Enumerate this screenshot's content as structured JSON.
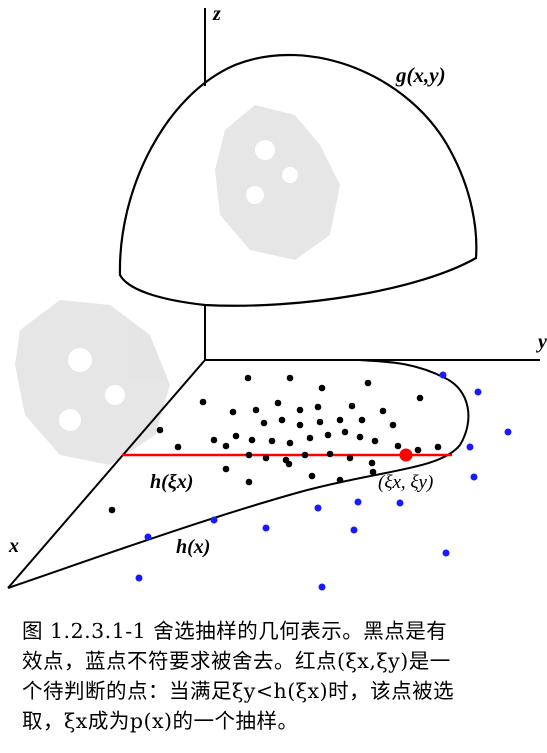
{
  "figure": {
    "axis_labels": {
      "z": "z",
      "y": "y",
      "x": "x"
    },
    "curve_labels": {
      "g": "g(x,y)",
      "h": "h(x)",
      "h_at_xi": "h(ξx)",
      "point": "(ξx, ξy)"
    },
    "colors": {
      "accepted_point": "#000000",
      "rejected_point": "#1a1aff",
      "candidate_point": "#ff0000",
      "reference_line": "#ff0000",
      "watermark": "#e0e0e0"
    },
    "watermark_icon": "watermark-glyph"
  },
  "caption": {
    "line1": "图 1.2.3.1-1 舍选抽样的几何表示。黑点是有",
    "line2": "效点，蓝点不符要求被舍去。红点(ξx,ξy)是一",
    "line3": "个待判断的点：当满足ξy<h(ξx)时，该点被选",
    "line4": "取，ξx成为p(x)的一个抽样。"
  }
}
